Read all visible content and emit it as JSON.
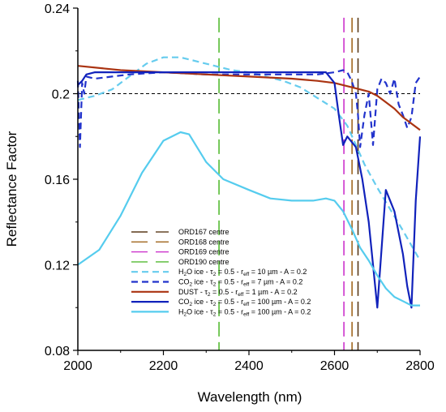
{
  "chart_data": {
    "type": "line",
    "title": "",
    "xlabel": "Wavelength (nm)",
    "ylabel": "Reflectance Factor",
    "xlim": [
      2000,
      2800
    ],
    "ylim": [
      0.08,
      0.24
    ],
    "xticks": [
      2000,
      2200,
      2400,
      2600,
      2800
    ],
    "yticks": [
      0.08,
      0.12,
      0.16,
      0.2,
      0.24
    ],
    "xtick_labels": [
      "2000",
      "2200",
      "2400",
      "2600",
      "2800"
    ],
    "ytick_labels": [
      "0.08",
      "0.12",
      "0.16",
      "0.2",
      "0.24"
    ],
    "grid": false,
    "legend_position": "bottom-center",
    "reference_line": {
      "y": 0.2,
      "style": "dashed",
      "color": "#000000"
    },
    "vertical_markers": [
      {
        "name": "ORD167 centre",
        "x": 2655,
        "color": "#5a3a1a"
      },
      {
        "name": "ORD168 centre",
        "x": 2641,
        "color": "#a0661e"
      },
      {
        "name": "ORD169 centre",
        "x": 2622,
        "color": "#cc33cc"
      },
      {
        "name": "ORD190 centre",
        "x": 2330,
        "color": "#55bb33"
      }
    ],
    "series": [
      {
        "legend": {
          "prefix": "H",
          "sub1": "2",
          "mid": "O ice - τ",
          "sub2": "2",
          "mid2": " = 0.5 - r",
          "sub3": "eff",
          "suffix": " = 10 µm - A = 0.2"
        },
        "color": "#66ccee",
        "dash": "dashed",
        "width": 2.2,
        "x": [
          2000,
          2040,
          2080,
          2120,
          2160,
          2200,
          2240,
          2280,
          2320,
          2360,
          2400,
          2440,
          2480,
          2520,
          2560,
          2600,
          2630,
          2650,
          2670,
          2700,
          2730,
          2760,
          2800
        ],
        "y": [
          0.197,
          0.199,
          0.202,
          0.208,
          0.214,
          0.217,
          0.217,
          0.215,
          0.213,
          0.211,
          0.21,
          0.208,
          0.206,
          0.203,
          0.198,
          0.193,
          0.185,
          0.176,
          0.167,
          0.156,
          0.146,
          0.136,
          0.122
        ]
      },
      {
        "legend": {
          "prefix": "CO",
          "sub1": "2",
          "mid": " ice - τ",
          "sub2": "2",
          "mid2": " = 0.5 - r",
          "sub3": "eff",
          "suffix": " = 7 µm - A = 0.2"
        },
        "color": "#2233cc",
        "dash": "dashed",
        "width": 2.2,
        "x": [
          2000,
          2005,
          2010,
          2015,
          2020,
          2040,
          2080,
          2120,
          2200,
          2300,
          2400,
          2500,
          2560,
          2600,
          2620,
          2630,
          2640,
          2650,
          2655,
          2660,
          2670,
          2680,
          2690,
          2700,
          2710,
          2720,
          2730,
          2740,
          2750,
          2760,
          2770,
          2780,
          2790,
          2800
        ],
        "y": [
          0.206,
          0.175,
          0.205,
          0.2,
          0.208,
          0.207,
          0.208,
          0.209,
          0.21,
          0.209,
          0.209,
          0.209,
          0.209,
          0.21,
          0.211,
          0.21,
          0.206,
          0.2,
          0.19,
          0.175,
          0.19,
          0.2,
          0.176,
          0.202,
          0.207,
          0.205,
          0.2,
          0.207,
          0.195,
          0.19,
          0.184,
          0.189,
          0.205,
          0.208
        ]
      },
      {
        "legend": {
          "prefix": "DUST - τ",
          "sub1": "2",
          "mid": " = 0.5 - r",
          "sub2": "eff",
          "mid2": " = 1 µm - A = 0.2",
          "sub3": "",
          "suffix": ""
        },
        "color": "#aa3311",
        "dash": "solid",
        "width": 2.2,
        "x": [
          2000,
          2100,
          2200,
          2300,
          2400,
          2500,
          2560,
          2600,
          2640,
          2680,
          2700,
          2720,
          2740,
          2760,
          2780,
          2800
        ],
        "y": [
          0.213,
          0.211,
          0.21,
          0.209,
          0.208,
          0.207,
          0.206,
          0.205,
          0.203,
          0.201,
          0.199,
          0.196,
          0.193,
          0.189,
          0.186,
          0.183
        ]
      },
      {
        "legend": {
          "prefix": "CO",
          "sub1": "2",
          "mid": " ice - τ",
          "sub2": "2",
          "mid2": " = 0.5 - r",
          "sub3": "eff",
          "suffix": " = 100 µm - A = 0.2"
        },
        "color": "#1122bb",
        "dash": "solid",
        "width": 2.2,
        "x": [
          2000,
          2010,
          2020,
          2040,
          2080,
          2200,
          2300,
          2400,
          2500,
          2580,
          2600,
          2610,
          2620,
          2630,
          2650,
          2665,
          2680,
          2690,
          2700,
          2720,
          2740,
          2760,
          2770,
          2780,
          2790,
          2800
        ],
        "y": [
          0.204,
          0.206,
          0.209,
          0.21,
          0.21,
          0.21,
          0.21,
          0.21,
          0.21,
          0.21,
          0.205,
          0.19,
          0.176,
          0.18,
          0.175,
          0.16,
          0.14,
          0.12,
          0.1,
          0.155,
          0.145,
          0.125,
          0.11,
          0.1,
          0.15,
          0.18
        ]
      },
      {
        "legend": {
          "prefix": "H",
          "sub1": "2",
          "mid": "O ice - τ",
          "sub2": "2",
          "mid2": " = 0.5 - r",
          "sub3": "eff",
          "suffix": " = 100 µm - A = 0.2"
        },
        "color": "#55ccee",
        "dash": "solid",
        "width": 2.2,
        "x": [
          2000,
          2050,
          2100,
          2150,
          2200,
          2240,
          2260,
          2300,
          2340,
          2400,
          2450,
          2500,
          2550,
          2580,
          2600,
          2620,
          2640,
          2660,
          2680,
          2700,
          2720,
          2740,
          2760,
          2780,
          2800
        ],
        "y": [
          0.12,
          0.127,
          0.143,
          0.163,
          0.178,
          0.182,
          0.181,
          0.168,
          0.16,
          0.155,
          0.151,
          0.15,
          0.15,
          0.151,
          0.15,
          0.145,
          0.137,
          0.128,
          0.122,
          0.115,
          0.109,
          0.105,
          0.103,
          0.101,
          0.101
        ]
      }
    ]
  }
}
